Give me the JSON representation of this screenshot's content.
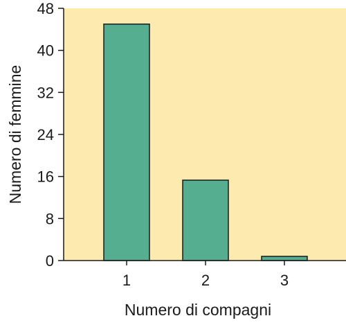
{
  "chart_data": {
    "type": "bar",
    "title": "",
    "xlabel": "Numero di compagni",
    "ylabel": "Numero di femmine",
    "categories": [
      "1",
      "2",
      "3"
    ],
    "values": [
      45,
      15.3,
      0.8
    ],
    "ylim": [
      0,
      48
    ],
    "yticks": [
      "0",
      "8",
      "16",
      "24",
      "32",
      "40",
      "48"
    ],
    "grid": false,
    "legend": "none"
  },
  "colors": {
    "plot_background": "#FDEAAE",
    "bar_fill": "#55AE90",
    "bar_stroke": "#1a1a1a",
    "axis": "#1a1a1a"
  }
}
